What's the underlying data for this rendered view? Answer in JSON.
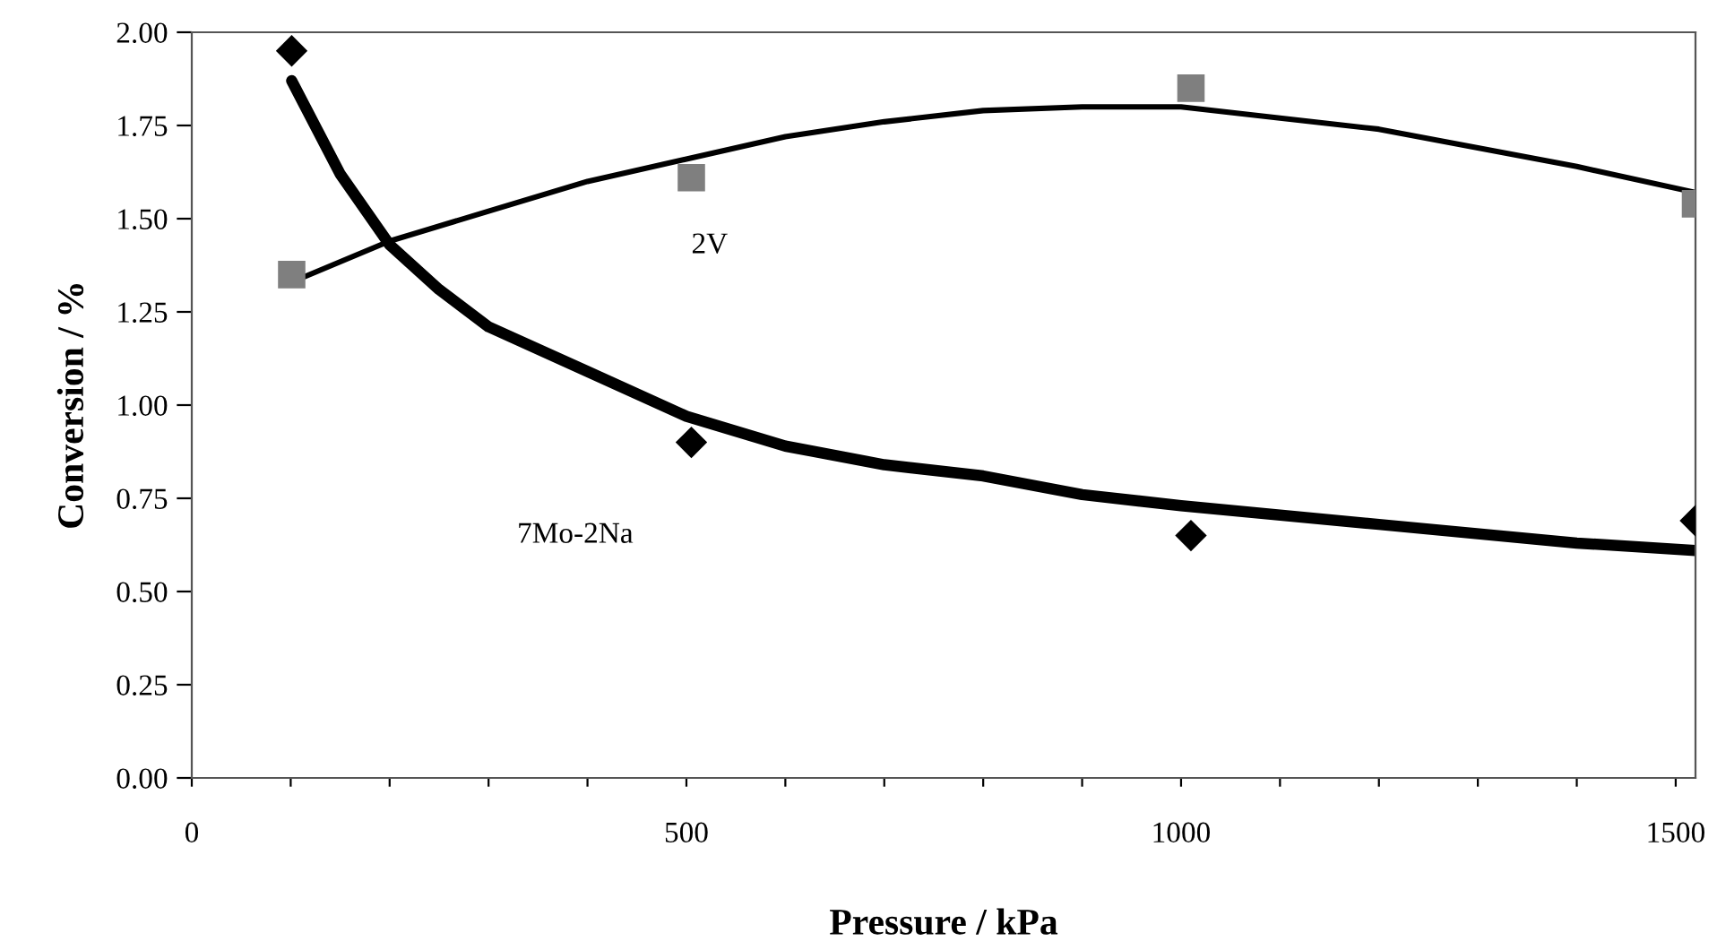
{
  "chart_data": {
    "type": "scatter",
    "xlabel": "Pressure / kPa",
    "ylabel": "Conversion / %",
    "xlim": [
      0,
      1520
    ],
    "ylim": [
      0,
      2.0
    ],
    "xticks": [
      0,
      {
        "value": 100,
        "label": null
      },
      {
        "value": 200,
        "label": null
      },
      {
        "value": 300,
        "label": null
      },
      {
        "value": 400,
        "label": null
      },
      500,
      {
        "value": 600,
        "label": null
      },
      {
        "value": 700,
        "label": null
      },
      {
        "value": 800,
        "label": null
      },
      {
        "value": 900,
        "label": null
      },
      1000,
      {
        "value": 1100,
        "label": null
      },
      {
        "value": 1200,
        "label": null
      },
      {
        "value": 1300,
        "label": null
      },
      {
        "value": 1400,
        "label": null
      },
      1500
    ],
    "yticks": [
      {
        "value": 0,
        "label": "0.00"
      },
      {
        "value": 0.25,
        "label": "0.25"
      },
      {
        "value": 0.5,
        "label": "0.50"
      },
      {
        "value": 0.75,
        "label": "0.75"
      },
      {
        "value": 1.0,
        "label": "1.00"
      },
      {
        "value": 1.25,
        "label": "1.25"
      },
      {
        "value": 1.5,
        "label": "1.50"
      },
      {
        "value": 1.75,
        "label": "1.75"
      },
      {
        "value": 2.0,
        "label": "2.00"
      }
    ],
    "grid": false,
    "legend": false,
    "series": [
      {
        "name": "2V",
        "marker": "square",
        "color": "#7f7f7f",
        "x": [
          101,
          505,
          1010,
          1520
        ],
        "values": [
          1.35,
          1.61,
          1.85,
          1.54
        ]
      },
      {
        "name": "7Mo-2Na",
        "marker": "diamond",
        "color": "#000000",
        "x": [
          101,
          505,
          1010,
          1520
        ],
        "values": [
          1.95,
          0.9,
          0.65,
          0.69
        ]
      },
      {
        "type": "line",
        "color": "#000000",
        "marker": "none",
        "line_style": "solid",
        "x": [
          101,
          200,
          300,
          400,
          500,
          600,
          700,
          800,
          900,
          1000,
          1100,
          1200,
          1300,
          1400,
          1520
        ],
        "values": [
          1.33,
          1.44,
          1.52,
          1.6,
          1.66,
          1.72,
          1.76,
          1.79,
          1.8,
          1.8,
          1.77,
          1.74,
          1.69,
          1.64,
          1.57
        ]
      },
      {
        "type": "line",
        "color": "#000000",
        "marker": "none",
        "line_style": "solid",
        "x": [
          101,
          150,
          200,
          250,
          300,
          400,
          500,
          600,
          700,
          800,
          900,
          1000,
          1200,
          1400,
          1520
        ],
        "values": [
          1.87,
          1.62,
          1.43,
          1.31,
          1.21,
          1.09,
          0.97,
          0.89,
          0.84,
          0.81,
          0.76,
          0.73,
          0.68,
          0.63,
          0.61
        ]
      }
    ]
  }
}
